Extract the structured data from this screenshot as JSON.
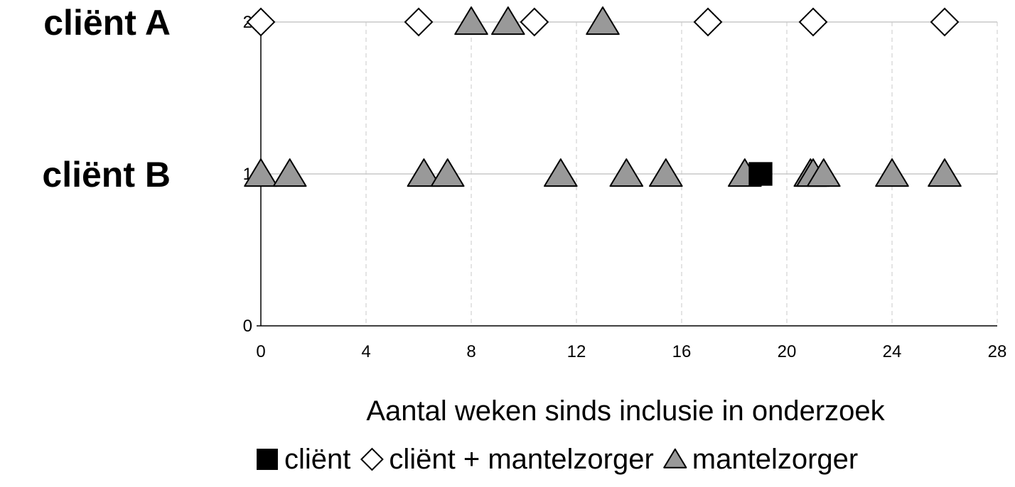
{
  "chart_data": {
    "type": "scatter",
    "row_labels": [
      {
        "label": "cliënt A",
        "y": 2
      },
      {
        "label": "cliënt B",
        "y": 1
      }
    ],
    "xlabel": "Aantal weken sinds inclusie in onderzoek",
    "xlim": [
      0,
      28
    ],
    "ylim": [
      0,
      2
    ],
    "x_ticks": [
      0,
      4,
      8,
      12,
      16,
      20,
      24,
      28
    ],
    "y_ticks": [
      0,
      1,
      2
    ],
    "grid": "vertical dashed lines and horizontal lines",
    "legend_position": "bottom",
    "series": [
      {
        "name": "cliënt",
        "marker": "square",
        "color": "#000000",
        "points": [
          [
            19,
            1
          ]
        ]
      },
      {
        "name": "cliënt + mantelzorger",
        "marker": "diamond",
        "color": "#ffffff",
        "points": [
          [
            0,
            2
          ],
          [
            6,
            2
          ],
          [
            10.4,
            2
          ],
          [
            17,
            2
          ],
          [
            21,
            2
          ],
          [
            26,
            2
          ]
        ]
      },
      {
        "name": "mantelzorger",
        "marker": "triangle",
        "color": "#999999",
        "points": [
          [
            8,
            2
          ],
          [
            9.4,
            2
          ],
          [
            13,
            2
          ],
          [
            0,
            1
          ],
          [
            1.1,
            1
          ],
          [
            6.2,
            1
          ],
          [
            7.1,
            1
          ],
          [
            11.4,
            1
          ],
          [
            13.9,
            1
          ],
          [
            15.4,
            1
          ],
          [
            18.4,
            1
          ],
          [
            20.9,
            1
          ],
          [
            21,
            1
          ],
          [
            21.4,
            1
          ],
          [
            24,
            1
          ],
          [
            26,
            1
          ]
        ]
      }
    ]
  }
}
